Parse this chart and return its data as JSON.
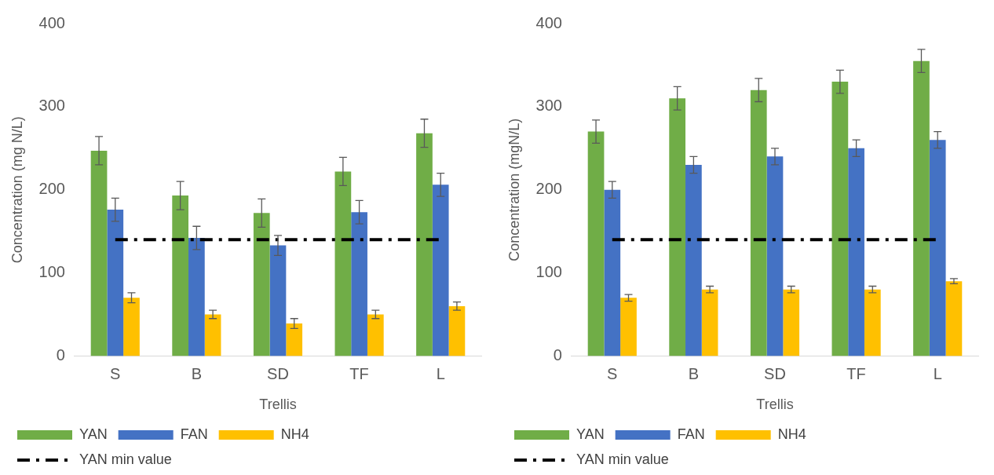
{
  "chart_data": [
    {
      "type": "bar",
      "xlabel": "Trellis",
      "ylabel": "Concentration (mg N/L)",
      "categories": [
        "S",
        "B",
        "SD",
        "TF",
        "L"
      ],
      "series": [
        {
          "name": "YAN",
          "color": "#70ad47",
          "values": [
            247,
            193,
            172,
            222,
            268
          ],
          "errors": [
            17,
            17,
            17,
            17,
            17
          ]
        },
        {
          "name": "FAN",
          "color": "#4472c4",
          "values": [
            176,
            142,
            133,
            173,
            206
          ],
          "errors": [
            14,
            14,
            12,
            14,
            14
          ]
        },
        {
          "name": "NH4",
          "color": "#ffc000",
          "values": [
            70,
            50,
            39,
            50,
            60
          ],
          "errors": [
            6,
            5,
            6,
            5,
            5
          ]
        }
      ],
      "ref_lines": [
        {
          "axis": "y",
          "value": 140,
          "label": "YAN min value",
          "color": "#000000",
          "line_style": "dashdot"
        }
      ],
      "ylim": [
        0,
        400
      ],
      "yticks": [
        0,
        100,
        200,
        300,
        400
      ],
      "grid": false,
      "legend": "bottom"
    },
    {
      "type": "bar",
      "xlabel": "Trellis",
      "ylabel": "Concentration (mgN/L)",
      "categories": [
        "S",
        "B",
        "SD",
        "TF",
        "L"
      ],
      "series": [
        {
          "name": "YAN",
          "color": "#70ad47",
          "values": [
            270,
            310,
            320,
            330,
            355
          ],
          "errors": [
            14,
            14,
            14,
            14,
            14
          ]
        },
        {
          "name": "FAN",
          "color": "#4472c4",
          "values": [
            200,
            230,
            240,
            250,
            260
          ],
          "errors": [
            10,
            10,
            10,
            10,
            10
          ]
        },
        {
          "name": "NH4",
          "color": "#ffc000",
          "values": [
            70,
            80,
            80,
            80,
            90
          ],
          "errors": [
            4,
            4,
            4,
            4,
            3
          ]
        }
      ],
      "ref_lines": [
        {
          "axis": "y",
          "value": 140,
          "label": "YAN min value",
          "color": "#000000",
          "line_style": "dashdot"
        }
      ],
      "ylim": [
        0,
        400
      ],
      "yticks": [
        0,
        100,
        200,
        300,
        400
      ],
      "grid": false,
      "legend": "bottom"
    }
  ]
}
